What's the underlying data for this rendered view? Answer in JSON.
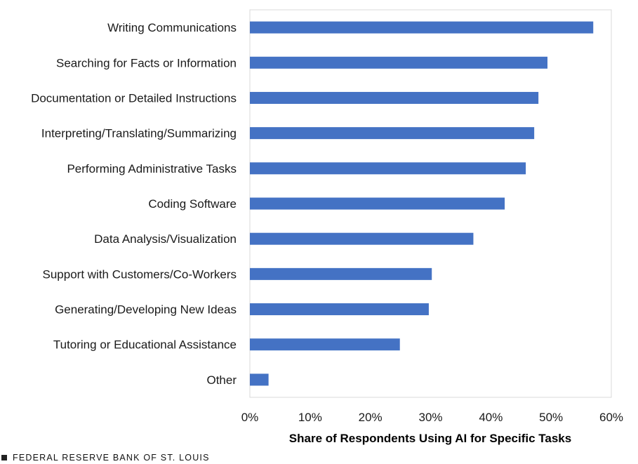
{
  "chart_data": {
    "type": "bar",
    "orientation": "horizontal",
    "categories": [
      "Writing Communications",
      "Searching for Facts or Information",
      "Documentation or Detailed Instructions",
      "Interpreting/Translating/Summarizing",
      "Performing Administrative Tasks",
      "Coding Software",
      "Data Analysis/Visualization",
      "Support with Customers/Co-Workers",
      "Generating/Developing New Ideas",
      "Tutoring or Educational Assistance",
      "Other"
    ],
    "values": [
      57.0,
      49.4,
      47.9,
      47.2,
      45.8,
      42.3,
      37.1,
      30.2,
      29.7,
      24.9,
      3.1
    ],
    "xlabel": "Share of Respondents Using AI for Specific Tasks",
    "ylabel": "",
    "xlim": [
      0,
      60
    ],
    "xticks": [
      0,
      10,
      20,
      30,
      40,
      50,
      60
    ],
    "xtick_labels": [
      "0%",
      "10%",
      "20%",
      "30%",
      "40%",
      "50%",
      "60%"
    ],
    "bar_color": "#4472C4",
    "grid": false,
    "legend": "none"
  },
  "footer": {
    "source_text": "FEDERAL RESERVE BANK OF ST. LOUIS"
  }
}
